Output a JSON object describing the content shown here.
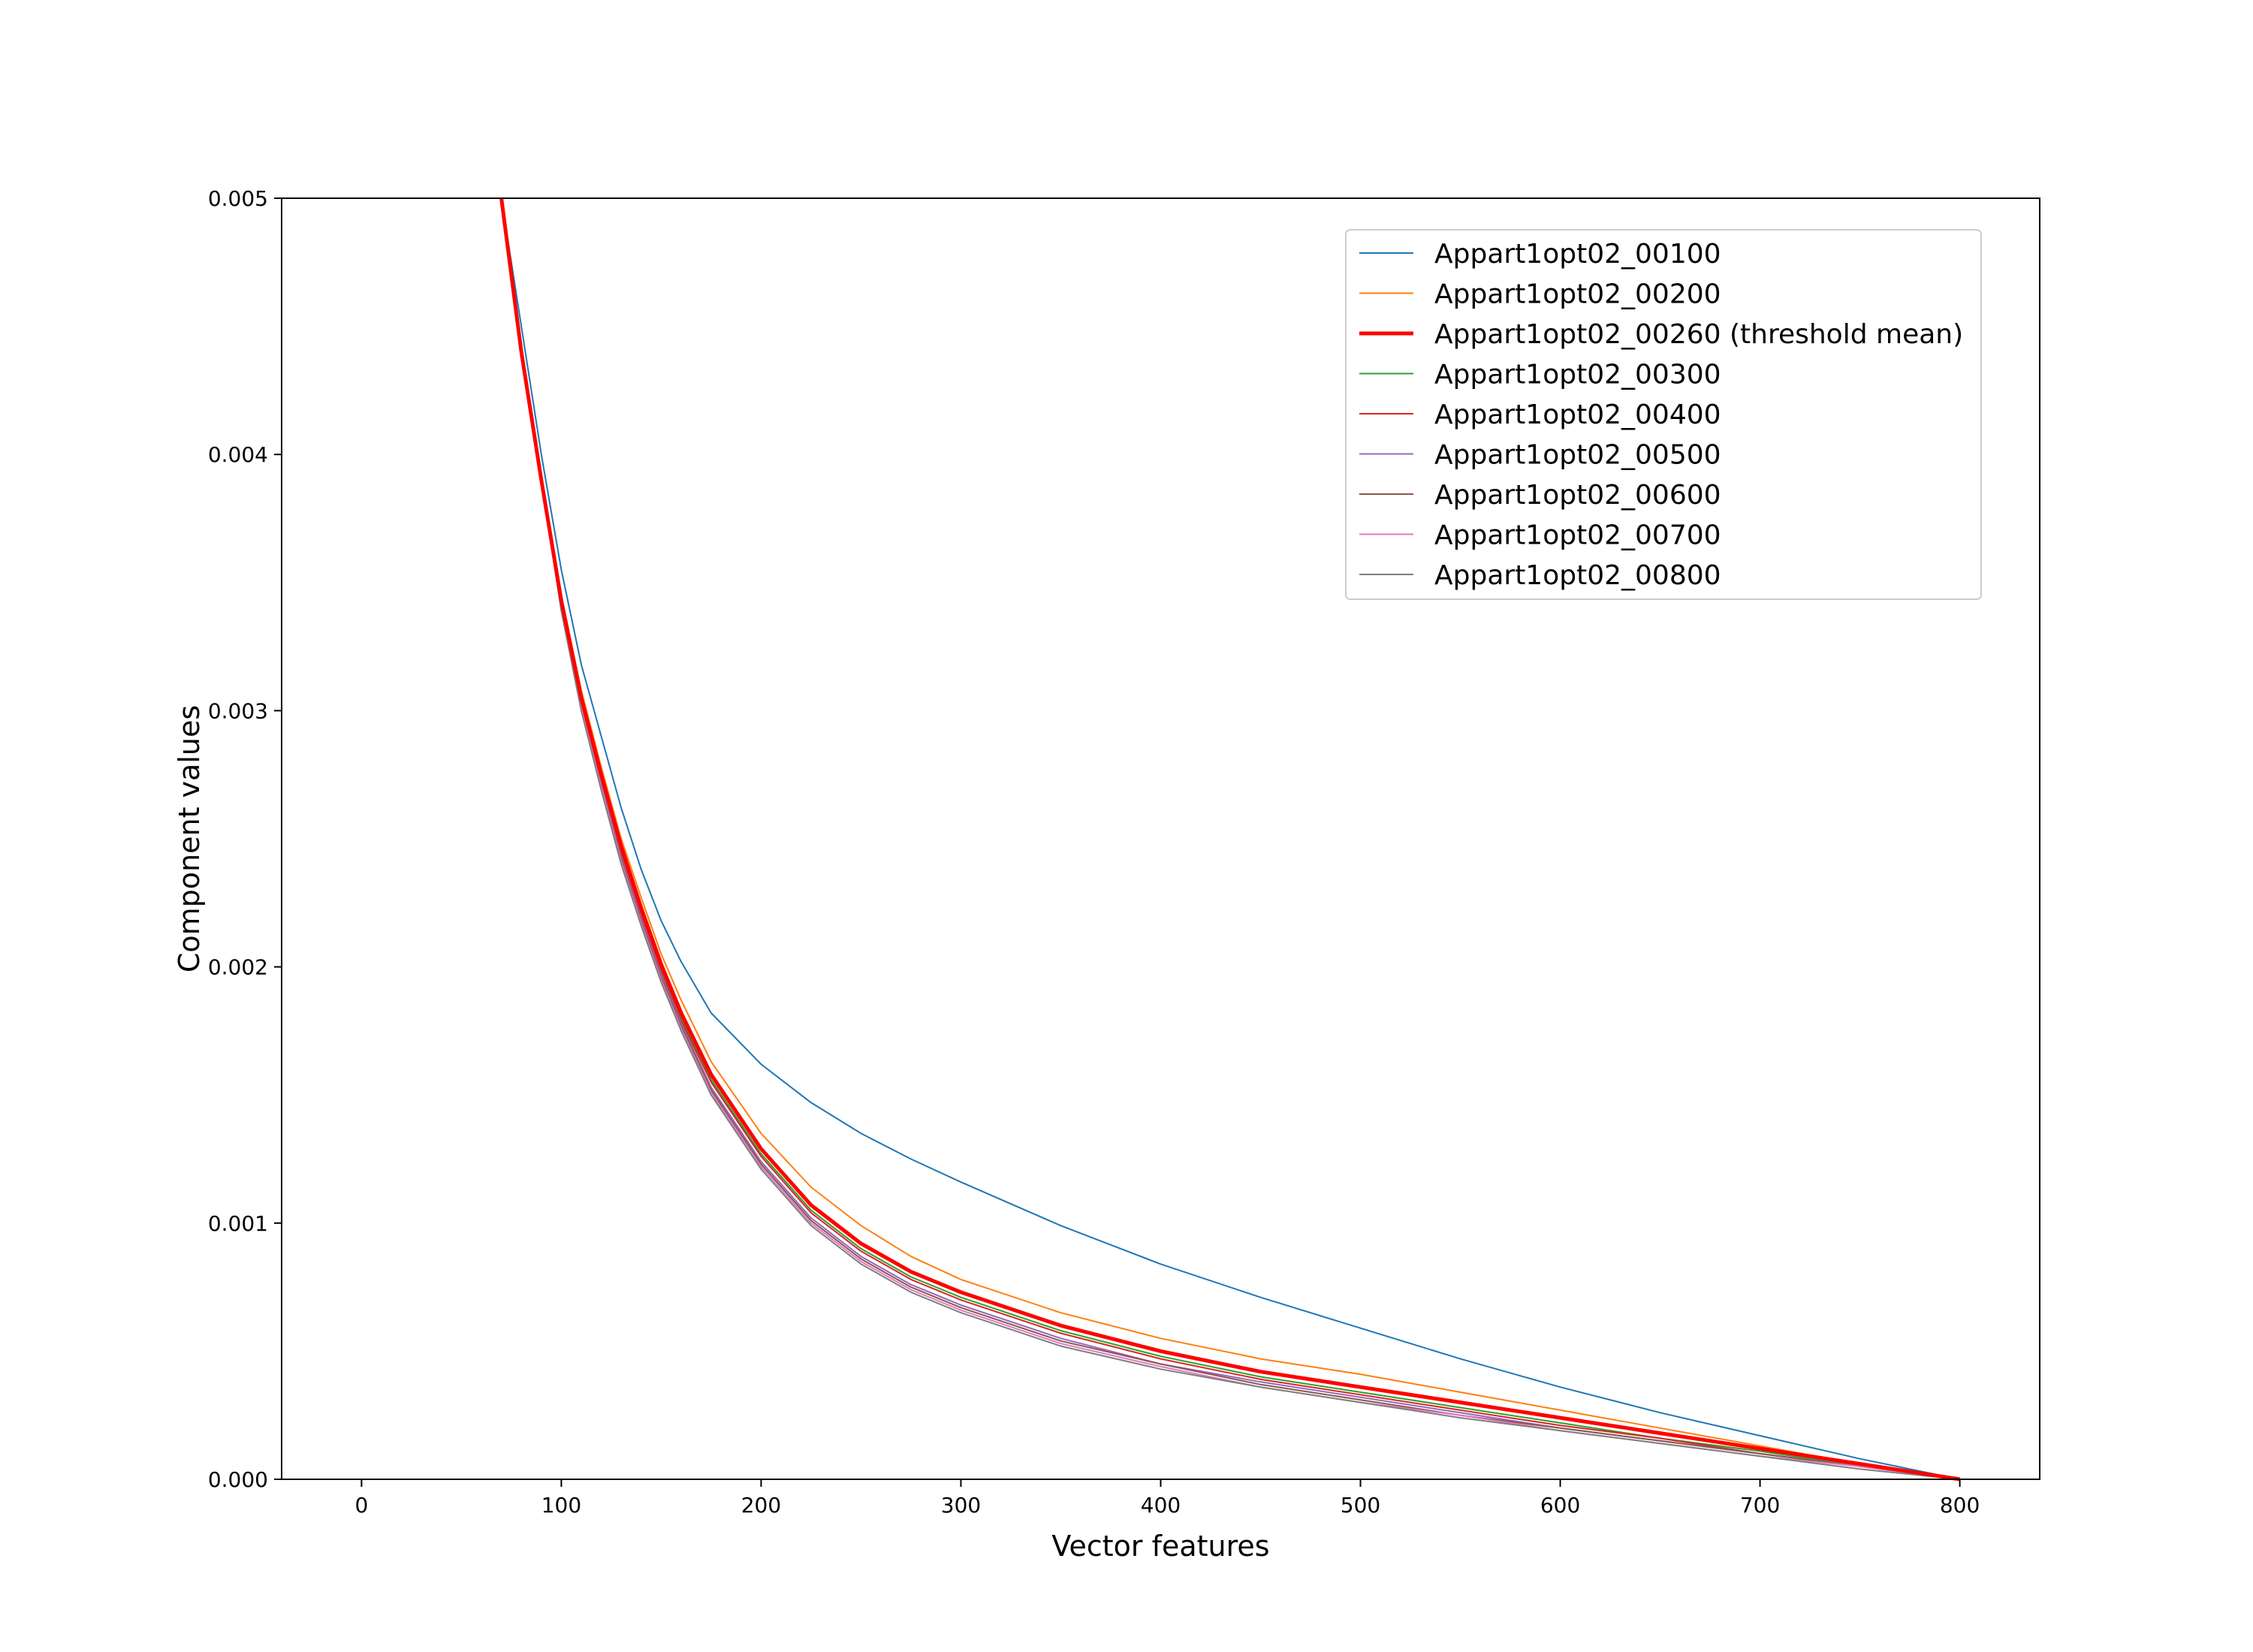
{
  "chart_data": {
    "type": "line",
    "xlabel": "Vector features",
    "ylabel": "Component values",
    "xlim": [
      -40,
      840
    ],
    "ylim": [
      0,
      0.005
    ],
    "xticks": [
      0,
      100,
      200,
      300,
      400,
      500,
      600,
      700,
      800
    ],
    "xtick_labels": [
      "0",
      "100",
      "200",
      "300",
      "400",
      "500",
      "600",
      "700",
      "800"
    ],
    "yticks": [
      0,
      0.001,
      0.002,
      0.003,
      0.004,
      0.005
    ],
    "ytick_labels": [
      "0.000",
      "0.001",
      "0.002",
      "0.003",
      "0.004",
      "0.005"
    ],
    "grid": false,
    "legend_position": "top-right",
    "x": [
      70,
      80,
      90,
      100,
      110,
      120,
      130,
      140,
      150,
      160,
      175,
      200,
      225,
      250,
      275,
      300,
      350,
      400,
      450,
      500,
      550,
      600,
      650,
      700,
      750,
      800
    ],
    "series": [
      {
        "name": "Appart1opt02_00100",
        "color": "#1f77b4",
        "width": 2,
        "values": [
          0.005,
          0.0045,
          0.004,
          0.00355,
          0.00318,
          0.0029,
          0.00262,
          0.00238,
          0.00218,
          0.00202,
          0.00182,
          0.00162,
          0.00147,
          0.00135,
          0.00125,
          0.00116,
          0.00099,
          0.00084,
          0.00071,
          0.00059,
          0.00047,
          0.00036,
          0.00026,
          0.00017,
          8e-05,
          0.0
        ]
      },
      {
        "name": "Appart1opt02_00200",
        "color": "#ff7f0e",
        "width": 2,
        "values": [
          0.005,
          0.0044,
          0.0039,
          0.00345,
          0.00308,
          0.00278,
          0.0025,
          0.00227,
          0.00205,
          0.00187,
          0.00163,
          0.00135,
          0.00114,
          0.00099,
          0.00087,
          0.00078,
          0.00065,
          0.00055,
          0.00047,
          0.00041,
          0.00034,
          0.00027,
          0.0002,
          0.00013,
          6e-05,
          0.0
        ]
      },
      {
        "name": "Appart1opt02_00260 (threshold mean)",
        "color": "#ff0000",
        "width": 5,
        "values": [
          0.005,
          0.0044,
          0.0039,
          0.00343,
          0.00305,
          0.00275,
          0.00247,
          0.00223,
          0.00201,
          0.00182,
          0.00158,
          0.00129,
          0.00107,
          0.00092,
          0.00081,
          0.00073,
          0.0006,
          0.0005,
          0.00042,
          0.00036,
          0.0003,
          0.00024,
          0.00018,
          0.00012,
          6e-05,
          0.0
        ]
      },
      {
        "name": "Appart1opt02_00300",
        "color": "#2ca02c",
        "width": 2,
        "values": [
          0.005,
          0.0044,
          0.0039,
          0.00342,
          0.00304,
          0.00273,
          0.00245,
          0.00221,
          0.00199,
          0.0018,
          0.00156,
          0.00127,
          0.00105,
          0.0009,
          0.00079,
          0.00071,
          0.00058,
          0.00048,
          0.0004,
          0.00034,
          0.00028,
          0.00022,
          0.00016,
          0.00011,
          5e-05,
          0.0
        ]
      },
      {
        "name": "Appart1opt02_00400",
        "color": "#d62728",
        "width": 2,
        "values": [
          0.005,
          0.0044,
          0.0039,
          0.00341,
          0.00303,
          0.00272,
          0.00244,
          0.0022,
          0.00198,
          0.00179,
          0.00155,
          0.00126,
          0.00104,
          0.00089,
          0.00078,
          0.0007,
          0.00057,
          0.00047,
          0.00039,
          0.00033,
          0.00027,
          0.00021,
          0.00016,
          0.0001,
          5e-05,
          0.0
        ]
      },
      {
        "name": "Appart1opt02_00500",
        "color": "#9467bd",
        "width": 2,
        "values": [
          0.005,
          0.0044,
          0.0039,
          0.0034,
          0.00302,
          0.00271,
          0.00243,
          0.00219,
          0.00197,
          0.00178,
          0.00153,
          0.00124,
          0.00102,
          0.00087,
          0.00076,
          0.00068,
          0.00055,
          0.00045,
          0.00038,
          0.00032,
          0.00026,
          0.0002,
          0.00015,
          0.0001,
          5e-05,
          0.0
        ]
      },
      {
        "name": "Appart1opt02_00600",
        "color": "#8c564b",
        "width": 2,
        "values": [
          0.005,
          0.0044,
          0.0039,
          0.0034,
          0.00302,
          0.0027,
          0.00242,
          0.00218,
          0.00196,
          0.00177,
          0.00152,
          0.00123,
          0.00101,
          0.00086,
          0.00075,
          0.00067,
          0.00054,
          0.00045,
          0.00037,
          0.00031,
          0.00025,
          0.0002,
          0.00015,
          0.0001,
          5e-05,
          0.0
        ]
      },
      {
        "name": "Appart1opt02_00700",
        "color": "#e377c2",
        "width": 2,
        "values": [
          0.005,
          0.0044,
          0.0039,
          0.00339,
          0.00301,
          0.0027,
          0.00241,
          0.00217,
          0.00195,
          0.00176,
          0.00151,
          0.00122,
          0.001,
          0.00085,
          0.00074,
          0.00066,
          0.00053,
          0.00044,
          0.00036,
          0.0003,
          0.00025,
          0.00019,
          0.00014,
          9e-05,
          5e-05,
          0.0
        ]
      },
      {
        "name": "Appart1opt02_00800",
        "color": "#7f7f7f",
        "width": 2,
        "values": [
          0.005,
          0.0044,
          0.0039,
          0.00339,
          0.003,
          0.00269,
          0.0024,
          0.00216,
          0.00194,
          0.00175,
          0.0015,
          0.00121,
          0.00099,
          0.00084,
          0.00073,
          0.00065,
          0.00052,
          0.00043,
          0.00036,
          0.0003,
          0.00024,
          0.00019,
          0.00014,
          9e-05,
          4e-05,
          0.0
        ]
      }
    ]
  }
}
